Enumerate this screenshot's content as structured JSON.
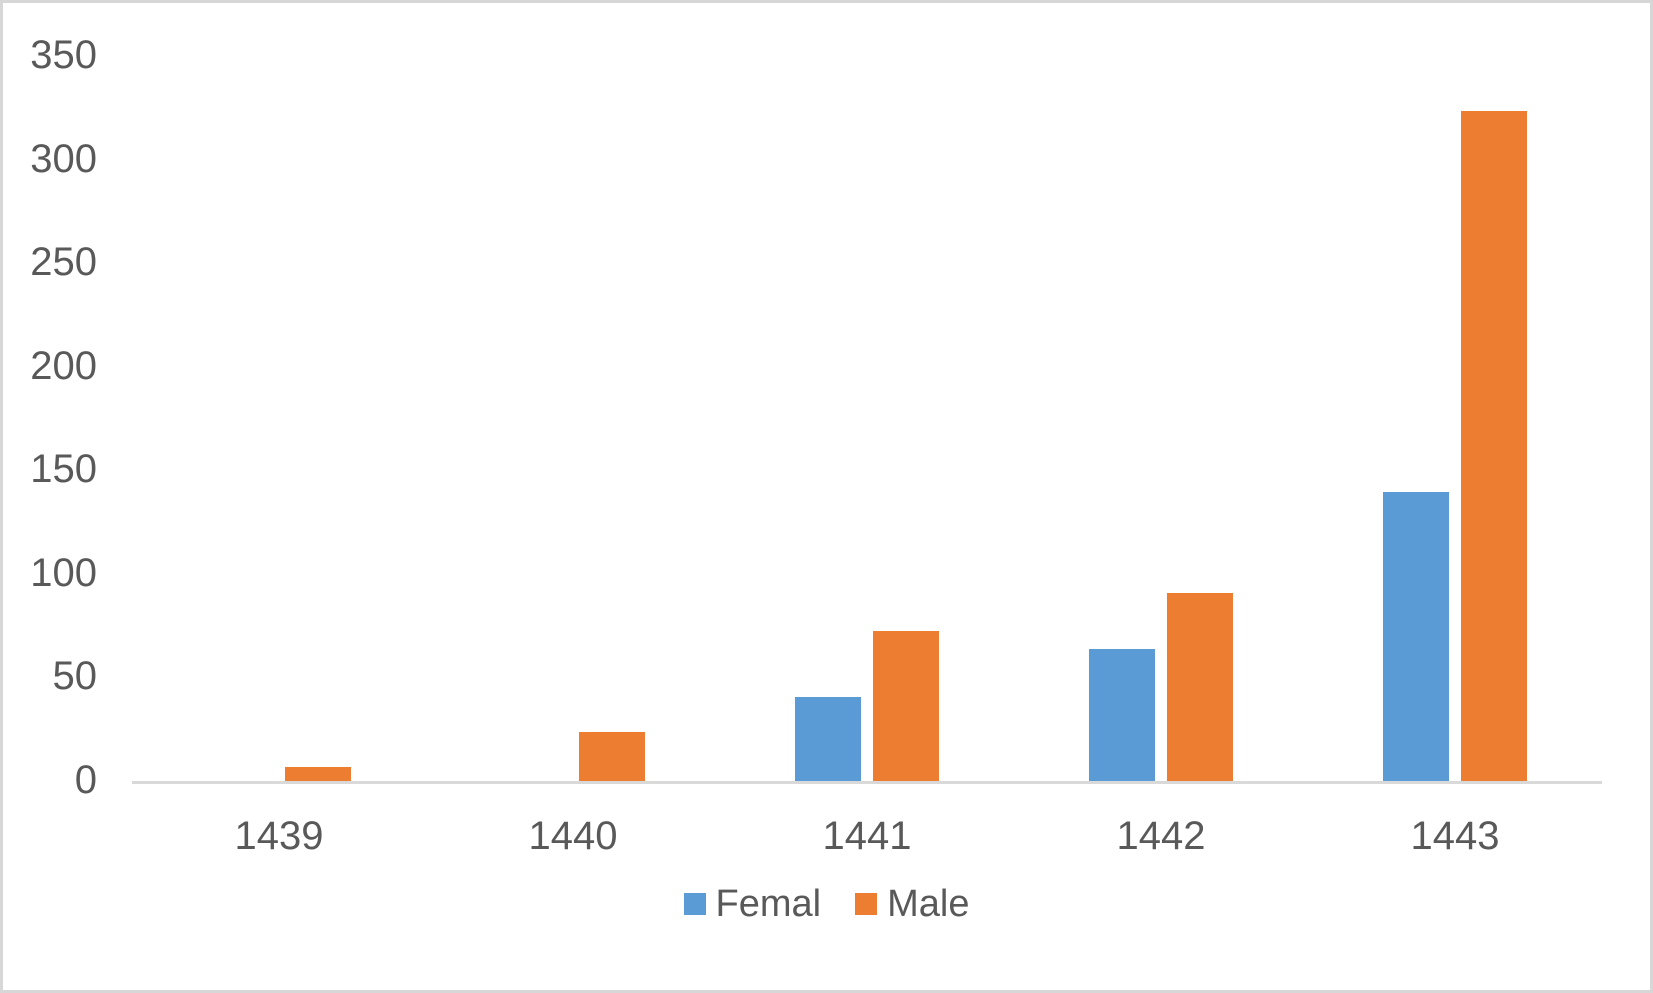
{
  "window": {
    "background_color": "#ffffff",
    "border_color": "#d7d7d7"
  },
  "chart_data": {
    "type": "bar",
    "title": "",
    "xlabel": "",
    "ylabel": "",
    "categories": [
      "1439",
      "1440",
      "1441",
      "1442",
      "1443"
    ],
    "series": [
      {
        "name": "Femal",
        "color": "#5b9bd5",
        "values": [
          0,
          1,
          42,
          65,
          141
        ]
      },
      {
        "name": "Male",
        "color": "#ed7d31",
        "values": [
          8,
          25,
          74,
          92,
          325
        ]
      }
    ],
    "ylim": [
      0,
      350
    ],
    "yticks": [
      0,
      50,
      100,
      150,
      200,
      250,
      300,
      350
    ],
    "grid": false,
    "legend_position": "bottom",
    "axis_line_color": "#d9d9d9",
    "text_color": "#595959"
  }
}
